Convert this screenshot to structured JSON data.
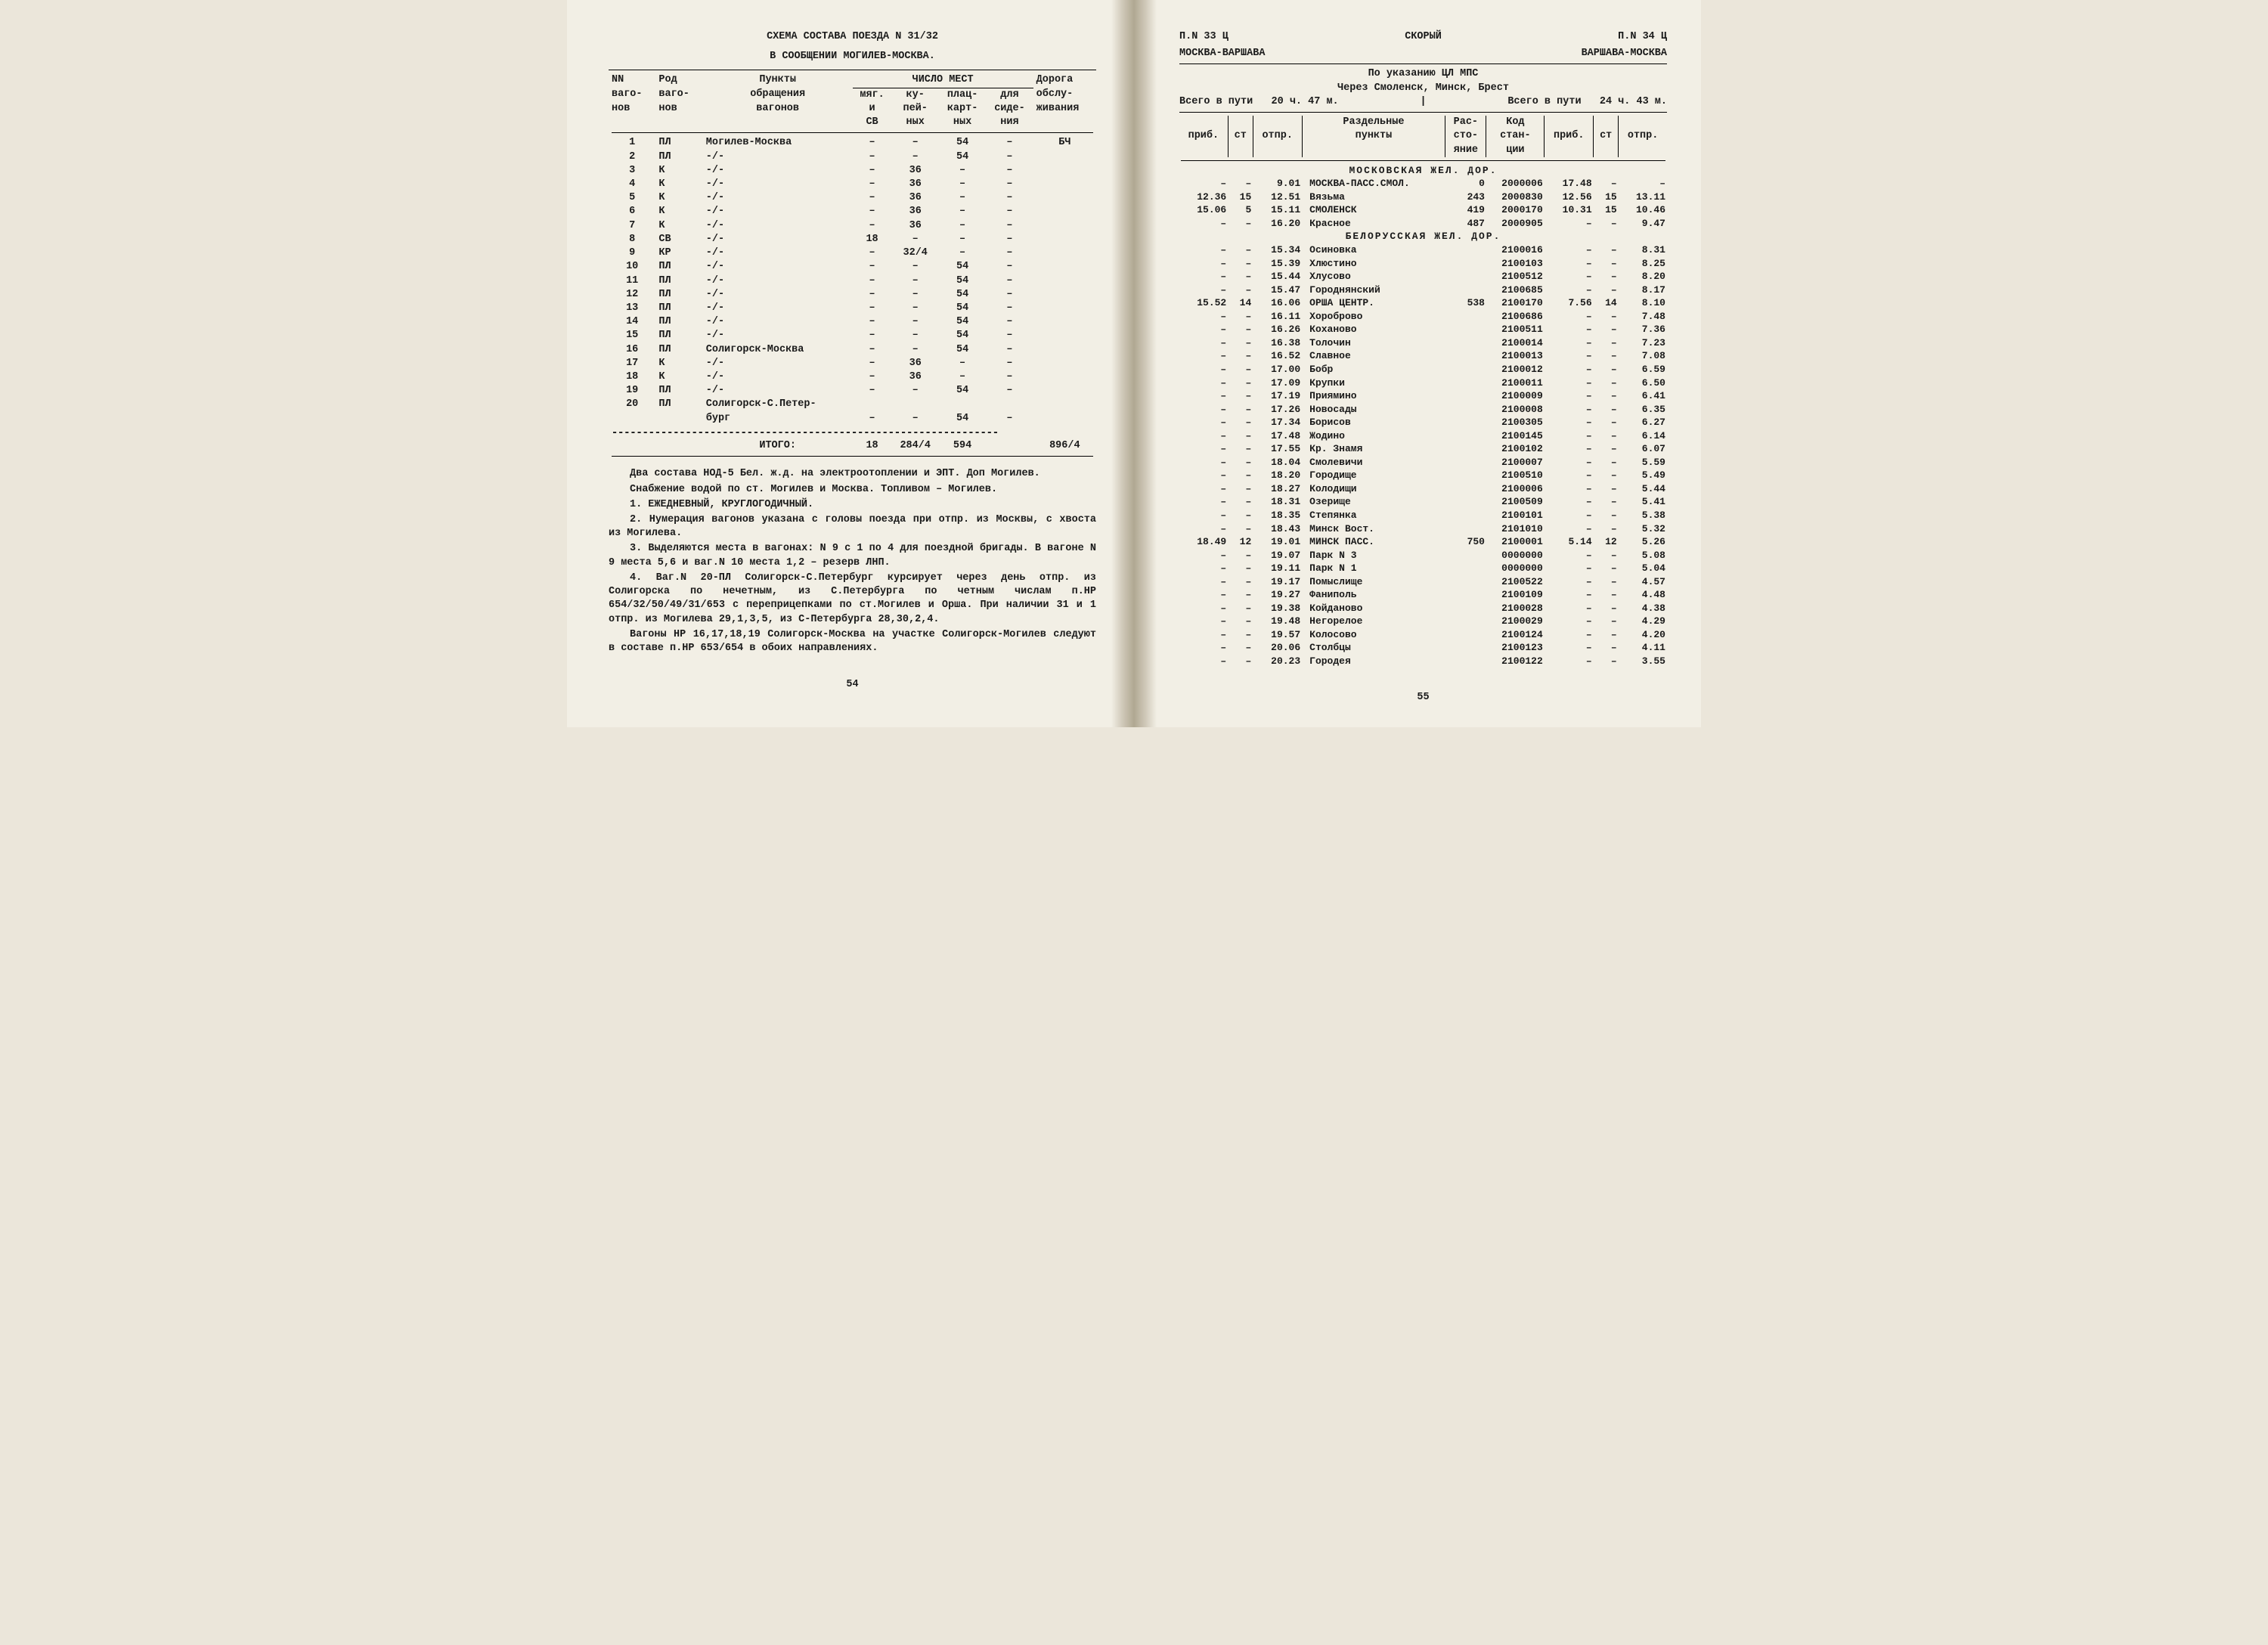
{
  "left": {
    "title1": "СХЕМА СОСТАВА ПОЕЗДА N 31/32",
    "title2": "В СООБЩЕНИИ МОГИЛЕВ-МОСКВА.",
    "headers": {
      "c1a": "NN",
      "c1b": "ваго-",
      "c1c": "нов",
      "c2a": "Род",
      "c2b": "ваго-",
      "c2c": "нов",
      "c3a": "Пункты",
      "c3b": "обращения",
      "c3c": "вагонов",
      "c4top": "ЧИСЛО МЕСТ",
      "c4a": "мяг.",
      "c4b": "и",
      "c4c": "СВ",
      "c5a": "ку-",
      "c5b": "пей-",
      "c5c": "ных",
      "c6a": "плац-",
      "c6b": "карт-",
      "c6c": "ных",
      "c7a": "для",
      "c7b": "сиде-",
      "c7c": "ния",
      "c8a": "Дорога",
      "c8b": "обслу-",
      "c8c": "живания"
    },
    "rows": [
      {
        "n": "1",
        "t": "ПЛ",
        "r": "Могилев-Москва",
        "m": "–",
        "k": "–",
        "p": "54",
        "s": "–",
        "d": "БЧ"
      },
      {
        "n": "2",
        "t": "ПЛ",
        "r": "-/-",
        "m": "–",
        "k": "–",
        "p": "54",
        "s": "–",
        "d": ""
      },
      {
        "n": "3",
        "t": "К",
        "r": "-/-",
        "m": "–",
        "k": "36",
        "p": "–",
        "s": "–",
        "d": ""
      },
      {
        "n": "4",
        "t": "К",
        "r": "-/-",
        "m": "–",
        "k": "36",
        "p": "–",
        "s": "–",
        "d": ""
      },
      {
        "n": "5",
        "t": "К",
        "r": "-/-",
        "m": "–",
        "k": "36",
        "p": "–",
        "s": "–",
        "d": ""
      },
      {
        "n": "6",
        "t": "К",
        "r": "-/-",
        "m": "–",
        "k": "36",
        "p": "–",
        "s": "–",
        "d": ""
      },
      {
        "n": "7",
        "t": "К",
        "r": "-/-",
        "m": "–",
        "k": "36",
        "p": "–",
        "s": "–",
        "d": ""
      },
      {
        "n": "8",
        "t": "СВ",
        "r": "-/-",
        "m": "18",
        "k": "–",
        "p": "–",
        "s": "–",
        "d": ""
      },
      {
        "n": "9",
        "t": "КР",
        "r": "-/-",
        "m": "–",
        "k": "32/4",
        "p": "–",
        "s": "–",
        "d": ""
      },
      {
        "n": "10",
        "t": "ПЛ",
        "r": "-/-",
        "m": "–",
        "k": "–",
        "p": "54",
        "s": "–",
        "d": ""
      },
      {
        "n": "11",
        "t": "ПЛ",
        "r": "-/-",
        "m": "–",
        "k": "–",
        "p": "54",
        "s": "–",
        "d": ""
      },
      {
        "n": "12",
        "t": "ПЛ",
        "r": "-/-",
        "m": "–",
        "k": "–",
        "p": "54",
        "s": "–",
        "d": ""
      },
      {
        "n": "13",
        "t": "ПЛ",
        "r": "-/-",
        "m": "–",
        "k": "–",
        "p": "54",
        "s": "–",
        "d": ""
      },
      {
        "n": "14",
        "t": "ПЛ",
        "r": "-/-",
        "m": "–",
        "k": "–",
        "p": "54",
        "s": "–",
        "d": ""
      },
      {
        "n": "15",
        "t": "ПЛ",
        "r": "-/-",
        "m": "–",
        "k": "–",
        "p": "54",
        "s": "–",
        "d": ""
      },
      {
        "n": "16",
        "t": "ПЛ",
        "r": "Солигорск-Москва",
        "m": "–",
        "k": "–",
        "p": "54",
        "s": "–",
        "d": ""
      },
      {
        "n": "17",
        "t": "К",
        "r": "-/-",
        "m": "–",
        "k": "36",
        "p": "–",
        "s": "–",
        "d": ""
      },
      {
        "n": "18",
        "t": "К",
        "r": "-/-",
        "m": "–",
        "k": "36",
        "p": "–",
        "s": "–",
        "d": ""
      },
      {
        "n": "19",
        "t": "ПЛ",
        "r": "-/-",
        "m": "–",
        "k": "–",
        "p": "54",
        "s": "–",
        "d": ""
      },
      {
        "n": "20",
        "t": "ПЛ",
        "r": "Солигорск-С.Петер-",
        "m": "",
        "k": "",
        "p": "",
        "s": "",
        "d": ""
      },
      {
        "n": "",
        "t": "",
        "r": "бург",
        "m": "–",
        "k": "–",
        "p": "54",
        "s": "–",
        "d": ""
      }
    ],
    "total_label": "ИТОГО:",
    "total": {
      "m": "18",
      "k": "284/4",
      "p": "594",
      "s": "",
      "d": "896/4"
    },
    "notes": [
      "Два состава НОД-5 Бел. ж.д. на электроотоплении и ЭПТ. Доп Могилев.",
      "Снабжение водой по ст. Могилев и Москва. Топливом – Могилев.",
      "1. ЕЖЕДНЕВНЫЙ, КРУГЛОГОДИЧНЫЙ.",
      "2. Нумерация вагонов указана с головы поезда при отпр. из Москвы, с хвоста из Могилева.",
      "3. Выделяются места в вагонах: N 9 с 1 по 4 для поездной бригады. В вагоне N 9 места 5,6 и ваг.N 10 места 1,2 – резерв ЛНП.",
      "4. Ваг.N 20-ПЛ Солигорск-С.Петербург курсирует через день отпр. из Солигорска по нечетным, из С.Петербурга по четным числам п.НР 654/32/50/49/31/653 с перепри­цепками по ст.Моги­лев и Орша. При наличии 31 и 1 отпр. из Могилева 29,1,3,5, из С-Петербурга 28,30,2,4.",
      "Вагоны НР 16,17,18,19 Солигорск-Москва на участке Соли­горск-Могилев следуют в составе п.НР 653/654 в обоих направ­лениях."
    ],
    "pagenum": "54"
  },
  "right": {
    "h_left": "П.N  33  Ц",
    "h_center": "СКОРЫЙ",
    "h_right": "П.N  34  Ц",
    "route_a": "МОСКВА-ВАРШАВА",
    "route_b": "ВАРШАВА-МОСКВА",
    "via1": "По указанию ЦЛ МПС",
    "via2": "Через Смоленск, Минск, Брест",
    "dur_a_l": "Всего в пути",
    "dur_a": "20 ч. 47 м.",
    "dur_b_l": "Всего в пути",
    "dur_b": "24 ч. 43 м.",
    "th": {
      "a1": "приб.",
      "a2": "ст",
      "a3": "отпр.",
      "mid1": "Раздельные",
      "mid2": "пункты",
      "d1": "Рас-",
      "d2": "сто-",
      "d3": "яние",
      "c1": "Код",
      "c2": "стан-",
      "c3": "ции",
      "b1": "приб.",
      "b2": "ст",
      "b3": "отпр."
    },
    "sec1": "МОСКОВСКАЯ ЖЕЛ. ДОР.",
    "rows1": [
      {
        "pa": "–",
        "sa": "–",
        "oa": "9.01",
        "name": "МОСКВА-ПАСС.СМОЛ.",
        "dist": "0",
        "code": "2000006",
        "pb": "17.48",
        "sb": "–",
        "ob": "–"
      },
      {
        "pa": "12.36",
        "sa": "15",
        "oa": "12.51",
        "name": "Вязьма",
        "dist": "243",
        "code": "2000830",
        "pb": "12.56",
        "sb": "15",
        "ob": "13.11"
      },
      {
        "pa": "15.06",
        "sa": "5",
        "oa": "15.11",
        "name": "СМОЛЕНСК",
        "dist": "419",
        "code": "2000170",
        "pb": "10.31",
        "sb": "15",
        "ob": "10.46"
      },
      {
        "pa": "–",
        "sa": "–",
        "oa": "16.20",
        "name": "Красное",
        "dist": "487",
        "code": "2000905",
        "pb": "–",
        "sb": "–",
        "ob": "9.47"
      }
    ],
    "sec2": "БЕЛОРУССКАЯ ЖЕЛ. ДОР.",
    "rows2": [
      {
        "pa": "–",
        "sa": "–",
        "oa": "15.34",
        "name": "Осиновка",
        "dist": "",
        "code": "2100016",
        "pb": "–",
        "sb": "–",
        "ob": "8.31"
      },
      {
        "pa": "–",
        "sa": "–",
        "oa": "15.39",
        "name": "Хлюстино",
        "dist": "",
        "code": "2100103",
        "pb": "–",
        "sb": "–",
        "ob": "8.25"
      },
      {
        "pa": "–",
        "sa": "–",
        "oa": "15.44",
        "name": "Хлусово",
        "dist": "",
        "code": "2100512",
        "pb": "–",
        "sb": "–",
        "ob": "8.20"
      },
      {
        "pa": "–",
        "sa": "–",
        "oa": "15.47",
        "name": "Городнянский",
        "dist": "",
        "code": "2100685",
        "pb": "–",
        "sb": "–",
        "ob": "8.17"
      },
      {
        "pa": "15.52",
        "sa": "14",
        "oa": "16.06",
        "name": "ОРША ЦЕНТР.",
        "dist": "538",
        "code": "2100170",
        "pb": "7.56",
        "sb": "14",
        "ob": "8.10"
      },
      {
        "pa": "–",
        "sa": "–",
        "oa": "16.11",
        "name": "Хороброво",
        "dist": "",
        "code": "2100686",
        "pb": "–",
        "sb": "–",
        "ob": "7.48"
      },
      {
        "pa": "–",
        "sa": "–",
        "oa": "16.26",
        "name": "Коханово",
        "dist": "",
        "code": "2100511",
        "pb": "–",
        "sb": "–",
        "ob": "7.36"
      },
      {
        "pa": "–",
        "sa": "–",
        "oa": "16.38",
        "name": "Толочин",
        "dist": "",
        "code": "2100014",
        "pb": "–",
        "sb": "–",
        "ob": "7.23"
      },
      {
        "pa": "–",
        "sa": "–",
        "oa": "16.52",
        "name": "Славное",
        "dist": "",
        "code": "2100013",
        "pb": "–",
        "sb": "–",
        "ob": "7.08"
      },
      {
        "pa": "–",
        "sa": "–",
        "oa": "17.00",
        "name": "Бобр",
        "dist": "",
        "code": "2100012",
        "pb": "–",
        "sb": "–",
        "ob": "6.59"
      },
      {
        "pa": "–",
        "sa": "–",
        "oa": "17.09",
        "name": "Крупки",
        "dist": "",
        "code": "2100011",
        "pb": "–",
        "sb": "–",
        "ob": "6.50"
      },
      {
        "pa": "–",
        "sa": "–",
        "oa": "17.19",
        "name": "Приямино",
        "dist": "",
        "code": "2100009",
        "pb": "–",
        "sb": "–",
        "ob": "6.41"
      },
      {
        "pa": "–",
        "sa": "–",
        "oa": "17.26",
        "name": "Новосады",
        "dist": "",
        "code": "2100008",
        "pb": "–",
        "sb": "–",
        "ob": "6.35"
      },
      {
        "pa": "–",
        "sa": "–",
        "oa": "17.34",
        "name": "Борисов",
        "dist": "",
        "code": "2100305",
        "pb": "–",
        "sb": "–",
        "ob": "6.27"
      },
      {
        "pa": "–",
        "sa": "–",
        "oa": "17.48",
        "name": "Жодино",
        "dist": "",
        "code": "2100145",
        "pb": "–",
        "sb": "–",
        "ob": "6.14"
      },
      {
        "pa": "–",
        "sa": "–",
        "oa": "17.55",
        "name": "Кр. Знамя",
        "dist": "",
        "code": "2100102",
        "pb": "–",
        "sb": "–",
        "ob": "6.07"
      },
      {
        "pa": "–",
        "sa": "–",
        "oa": "18.04",
        "name": "Смолевичи",
        "dist": "",
        "code": "2100007",
        "pb": "–",
        "sb": "–",
        "ob": "5.59"
      },
      {
        "pa": "–",
        "sa": "–",
        "oa": "18.20",
        "name": "Городище",
        "dist": "",
        "code": "2100510",
        "pb": "–",
        "sb": "–",
        "ob": "5.49"
      },
      {
        "pa": "–",
        "sa": "–",
        "oa": "18.27",
        "name": "Колодищи",
        "dist": "",
        "code": "2100006",
        "pb": "–",
        "sb": "–",
        "ob": "5.44"
      },
      {
        "pa": "–",
        "sa": "–",
        "oa": "18.31",
        "name": "Озерище",
        "dist": "",
        "code": "2100509",
        "pb": "–",
        "sb": "–",
        "ob": "5.41"
      },
      {
        "pa": "–",
        "sa": "–",
        "oa": "18.35",
        "name": "Степянка",
        "dist": "",
        "code": "2100101",
        "pb": "–",
        "sb": "–",
        "ob": "5.38"
      },
      {
        "pa": "–",
        "sa": "–",
        "oa": "18.43",
        "name": "Минск Вост.",
        "dist": "",
        "code": "2101010",
        "pb": "–",
        "sb": "–",
        "ob": "5.32"
      },
      {
        "pa": "18.49",
        "sa": "12",
        "oa": "19.01",
        "name": "МИНСК ПАСС.",
        "dist": "750",
        "code": "2100001",
        "pb": "5.14",
        "sb": "12",
        "ob": "5.26"
      },
      {
        "pa": "–",
        "sa": "–",
        "oa": "19.07",
        "name": "Парк N 3",
        "dist": "",
        "code": "0000000",
        "pb": "–",
        "sb": "–",
        "ob": "5.08"
      },
      {
        "pa": "–",
        "sa": "–",
        "oa": "19.11",
        "name": "Парк N 1",
        "dist": "",
        "code": "0000000",
        "pb": "–",
        "sb": "–",
        "ob": "5.04"
      },
      {
        "pa": "–",
        "sa": "–",
        "oa": "19.17",
        "name": "Помыслище",
        "dist": "",
        "code": "2100522",
        "pb": "–",
        "sb": "–",
        "ob": "4.57"
      },
      {
        "pa": "–",
        "sa": "–",
        "oa": "19.27",
        "name": "Фаниполь",
        "dist": "",
        "code": "2100109",
        "pb": "–",
        "sb": "–",
        "ob": "4.48"
      },
      {
        "pa": "–",
        "sa": "–",
        "oa": "19.38",
        "name": "Койданово",
        "dist": "",
        "code": "2100028",
        "pb": "–",
        "sb": "–",
        "ob": "4.38"
      },
      {
        "pa": "–",
        "sa": "–",
        "oa": "19.48",
        "name": "Негорелое",
        "dist": "",
        "code": "2100029",
        "pb": "–",
        "sb": "–",
        "ob": "4.29"
      },
      {
        "pa": "–",
        "sa": "–",
        "oa": "19.57",
        "name": "Колосово",
        "dist": "",
        "code": "2100124",
        "pb": "–",
        "sb": "–",
        "ob": "4.20"
      },
      {
        "pa": "–",
        "sa": "–",
        "oa": "20.06",
        "name": "Столбцы",
        "dist": "",
        "code": "2100123",
        "pb": "–",
        "sb": "–",
        "ob": "4.11"
      },
      {
        "pa": "–",
        "sa": "–",
        "oa": "20.23",
        "name": "Городея",
        "dist": "",
        "code": "2100122",
        "pb": "–",
        "sb": "–",
        "ob": "3.55"
      }
    ],
    "pagenum": "55"
  }
}
